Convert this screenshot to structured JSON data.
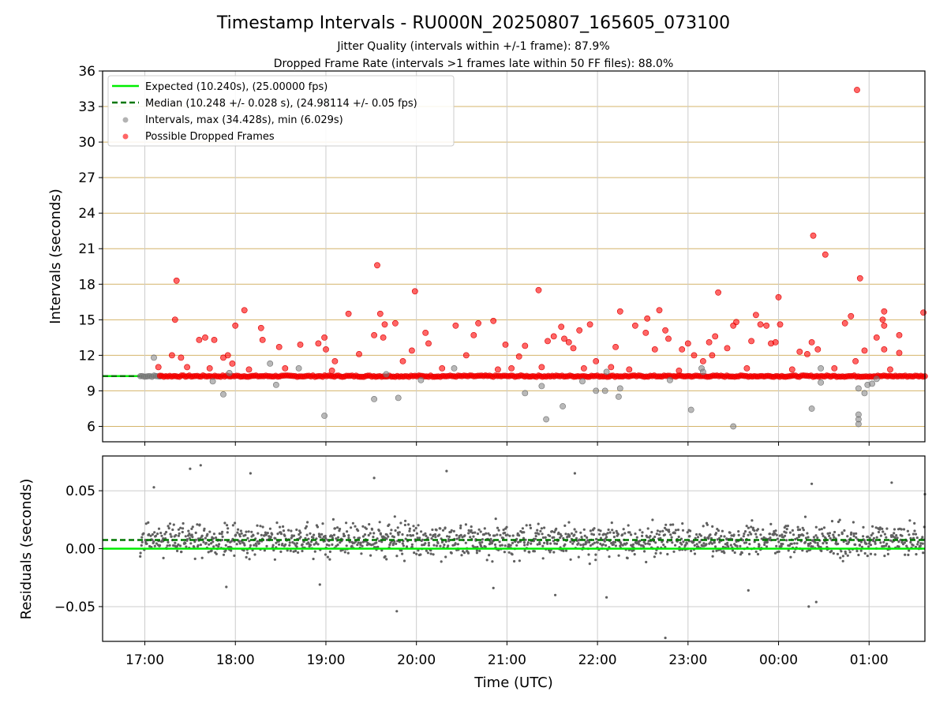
{
  "chart_data": [
    {
      "type": "scatter",
      "title": "Timestamp Intervals - RU000N_20250807_165605_073100",
      "subtitles": [
        "Jitter Quality (intervals within +/-1 frame): 87.9%",
        "Dropped Frame Rate (intervals >1 frames late within 50 FF files): 88.0%"
      ],
      "xlabel": "",
      "ylabel": "Intervals (seconds)",
      "xlim": [
        "16:32",
        "01:37"
      ],
      "ylim": [
        4.7,
        36
      ],
      "yticks": [
        6,
        9,
        12,
        15,
        18,
        21,
        24,
        27,
        30,
        33,
        36
      ],
      "ygrid": true,
      "xgrid": true,
      "legend_position": "upper-left",
      "lines": [
        {
          "name": "Expected (10.240s), (25.00000 fps)",
          "y": 10.24,
          "color": "#00ee00",
          "style": "solid"
        },
        {
          "name": "Median (10.248 +/- 0.028 s), (24.98114 +/- 0.05 fps)",
          "y": 10.248,
          "color": "#007700",
          "style": "dashed"
        }
      ],
      "series": [
        {
          "name": "Intervals, max (34.428s), min (6.029s)",
          "color": "#808080",
          "points": [
            [
              "17:06",
              11.8
            ],
            [
              "17:45",
              9.8
            ],
            [
              "17:52",
              8.7
            ],
            [
              "18:23",
              11.3
            ],
            [
              "18:27",
              9.5
            ],
            [
              "18:42",
              10.9
            ],
            [
              "18:59",
              6.9
            ],
            [
              "19:32",
              8.3
            ],
            [
              "19:48",
              8.4
            ],
            [
              "20:03",
              9.9
            ],
            [
              "20:25",
              10.9
            ],
            [
              "21:12",
              8.8
            ],
            [
              "21:23",
              9.4
            ],
            [
              "21:26",
              6.6
            ],
            [
              "21:37",
              7.7
            ],
            [
              "21:50",
              9.8
            ],
            [
              "21:59",
              9.0
            ],
            [
              "22:05",
              9.0
            ],
            [
              "22:06",
              10.6
            ],
            [
              "22:14",
              8.5
            ],
            [
              "22:15",
              9.2
            ],
            [
              "22:48",
              9.9
            ],
            [
              "23:02",
              7.4
            ],
            [
              "23:09",
              10.9
            ],
            [
              "23:10",
              10.6
            ],
            [
              "23:30",
              6.0
            ],
            [
              "00:22",
              7.5
            ],
            [
              "00:28",
              10.9
            ],
            [
              "00:28",
              9.7
            ],
            [
              "00:53",
              9.2
            ],
            [
              "00:53",
              7.0
            ],
            [
              "00:53",
              6.6
            ],
            [
              "00:53",
              6.2
            ],
            [
              "00:57",
              8.8
            ],
            [
              "00:59",
              9.5
            ],
            [
              "01:02",
              9.6
            ],
            [
              "01:05",
              10.0
            ],
            [
              "17:56",
              10.5
            ],
            [
              "19:40",
              10.4
            ]
          ]
        },
        {
          "name": "Possible Dropped Frames",
          "color": "#ff0000",
          "points": [
            [
              "17:18",
              12.0
            ],
            [
              "17:20",
              15.0
            ],
            [
              "17:21",
              18.3
            ],
            [
              "17:24",
              11.8
            ],
            [
              "17:36",
              13.3
            ],
            [
              "17:40",
              13.5
            ],
            [
              "17:46",
              13.3
            ],
            [
              "17:52",
              11.8
            ],
            [
              "17:55",
              12.0
            ],
            [
              "17:58",
              11.3
            ],
            [
              "18:00",
              14.5
            ],
            [
              "18:06",
              15.8
            ],
            [
              "18:17",
              14.3
            ],
            [
              "18:18",
              13.3
            ],
            [
              "18:29",
              12.7
            ],
            [
              "18:43",
              12.9
            ],
            [
              "18:55",
              13.0
            ],
            [
              "18:59",
              13.5
            ],
            [
              "19:00",
              12.5
            ],
            [
              "19:06",
              11.5
            ],
            [
              "19:15",
              15.5
            ],
            [
              "19:22",
              12.1
            ],
            [
              "19:32",
              13.7
            ],
            [
              "19:34",
              19.6
            ],
            [
              "19:36",
              15.5
            ],
            [
              "19:38",
              13.5
            ],
            [
              "19:39",
              14.6
            ],
            [
              "19:46",
              14.7
            ],
            [
              "19:51",
              11.5
            ],
            [
              "19:57",
              12.4
            ],
            [
              "19:59",
              17.4
            ],
            [
              "20:06",
              13.9
            ],
            [
              "20:08",
              13.0
            ],
            [
              "20:26",
              14.5
            ],
            [
              "20:33",
              12.0
            ],
            [
              "20:38",
              13.7
            ],
            [
              "20:41",
              14.7
            ],
            [
              "20:51",
              14.9
            ],
            [
              "20:59",
              12.9
            ],
            [
              "21:08",
              11.9
            ],
            [
              "21:12",
              12.8
            ],
            [
              "21:21",
              17.5
            ],
            [
              "21:23",
              11.0
            ],
            [
              "21:27",
              13.2
            ],
            [
              "21:31",
              13.6
            ],
            [
              "21:36",
              14.4
            ],
            [
              "21:38",
              13.4
            ],
            [
              "21:41",
              13.1
            ],
            [
              "21:44",
              12.6
            ],
            [
              "21:48",
              14.1
            ],
            [
              "21:51",
              10.9
            ],
            [
              "21:55",
              14.6
            ],
            [
              "21:59",
              11.5
            ],
            [
              "22:09",
              11.0
            ],
            [
              "22:12",
              12.7
            ],
            [
              "22:15",
              15.7
            ],
            [
              "22:25",
              14.5
            ],
            [
              "22:32",
              13.9
            ],
            [
              "22:33",
              15.1
            ],
            [
              "22:38",
              12.5
            ],
            [
              "22:41",
              15.8
            ],
            [
              "22:45",
              14.1
            ],
            [
              "22:47",
              13.4
            ],
            [
              "22:56",
              12.5
            ],
            [
              "23:00",
              13.0
            ],
            [
              "23:04",
              12.0
            ],
            [
              "23:10",
              11.5
            ],
            [
              "23:14",
              13.1
            ],
            [
              "23:16",
              12.0
            ],
            [
              "23:18",
              13.6
            ],
            [
              "23:20",
              17.3
            ],
            [
              "23:26",
              12.6
            ],
            [
              "23:30",
              14.5
            ],
            [
              "23:32",
              14.8
            ],
            [
              "23:42",
              13.2
            ],
            [
              "23:45",
              15.4
            ],
            [
              "23:48",
              14.6
            ],
            [
              "23:52",
              14.5
            ],
            [
              "23:55",
              13.0
            ],
            [
              "23:58",
              13.1
            ],
            [
              "00:00",
              16.9
            ],
            [
              "00:01",
              14.6
            ],
            [
              "00:14",
              12.3
            ],
            [
              "00:19",
              12.1
            ],
            [
              "00:22",
              13.1
            ],
            [
              "00:23",
              22.1
            ],
            [
              "00:26",
              12.5
            ],
            [
              "00:31",
              20.5
            ],
            [
              "00:44",
              14.7
            ],
            [
              "00:48",
              15.3
            ],
            [
              "00:51",
              11.5
            ],
            [
              "00:54",
              18.5
            ],
            [
              "00:57",
              12.4
            ],
            [
              "01:05",
              13.5
            ],
            [
              "01:09",
              15.0
            ],
            [
              "01:10",
              15.7
            ],
            [
              "01:10",
              14.5
            ],
            [
              "01:10",
              12.5
            ],
            [
              "01:20",
              12.2
            ],
            [
              "01:20",
              13.7
            ],
            [
              "01:36",
              15.6
            ],
            [
              "00:52",
              34.4
            ],
            [
              "17:09",
              11.0
            ],
            [
              "17:28",
              11.0
            ],
            [
              "17:43",
              10.9
            ],
            [
              "18:09",
              10.8
            ],
            [
              "18:33",
              10.9
            ],
            [
              "19:04",
              10.7
            ],
            [
              "20:17",
              10.9
            ],
            [
              "20:54",
              10.8
            ],
            [
              "21:03",
              10.9
            ],
            [
              "22:21",
              10.8
            ],
            [
              "22:54",
              10.7
            ],
            [
              "23:39",
              10.9
            ],
            [
              "00:09",
              10.8
            ],
            [
              "00:37",
              10.9
            ],
            [
              "01:14",
              10.8
            ]
          ]
        }
      ],
      "bands": [
        {
          "name": "Intervals, max (34.428s), min (6.029s)",
          "x_start": "16:57",
          "x_end": "17:10",
          "y": 10.24,
          "color": "#808080"
        },
        {
          "name": "Possible Dropped Frames",
          "x_start": "17:10",
          "x_end": "01:37",
          "y": 10.24,
          "color": "#ff0000"
        }
      ]
    },
    {
      "type": "scatter",
      "xlabel": "Time (UTC)",
      "ylabel": "Residuals (seconds)",
      "xlim": [
        "16:32",
        "01:37"
      ],
      "ylim": [
        -0.08,
        0.08
      ],
      "yticks": [
        -0.05,
        0.0,
        0.05
      ],
      "ytick_labels": [
        "−0.05",
        "0.00",
        "0.05"
      ],
      "xticks": [
        "17:00",
        "18:00",
        "19:00",
        "20:00",
        "21:00",
        "22:00",
        "23:00",
        "00:00",
        "01:00"
      ],
      "ygrid": true,
      "xgrid": true,
      "lines": [
        {
          "y": 0.0,
          "color": "#00ee00",
          "style": "solid"
        },
        {
          "y": 0.0075,
          "color": "#007700",
          "style": "dashed"
        }
      ],
      "series": [
        {
          "color": "#606060",
          "distribution": {
            "x_start": "16:57",
            "x_end": "01:37",
            "count": 1500,
            "center": 0.0075,
            "spread": 0.013
          },
          "points": [
            [
              "17:30",
              0.069
            ],
            [
              "17:37",
              0.072
            ],
            [
              "17:06",
              0.053
            ],
            [
              "18:10",
              0.065
            ],
            [
              "19:32",
              0.061
            ],
            [
              "20:20",
              0.067
            ],
            [
              "21:45",
              0.065
            ],
            [
              "00:22",
              0.056
            ],
            [
              "01:15",
              0.057
            ],
            [
              "01:37",
              0.047
            ],
            [
              "19:47",
              -0.054
            ],
            [
              "22:06",
              -0.042
            ],
            [
              "22:45",
              -0.077
            ],
            [
              "00:20",
              -0.05
            ],
            [
              "00:25",
              -0.046
            ],
            [
              "17:54",
              -0.033
            ],
            [
              "21:32",
              -0.04
            ],
            [
              "23:40",
              -0.036
            ],
            [
              "20:51",
              -0.034
            ],
            [
              "18:56",
              -0.031
            ]
          ]
        }
      ]
    }
  ]
}
